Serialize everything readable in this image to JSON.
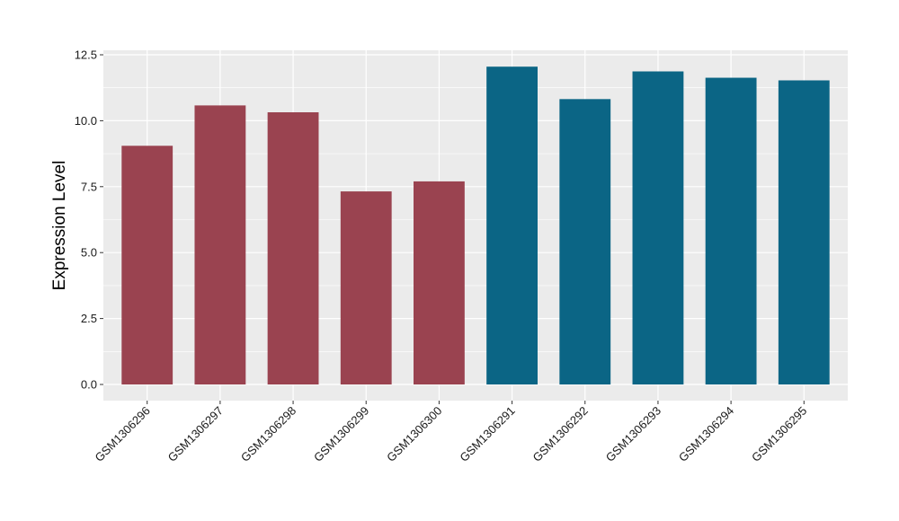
{
  "chart_data": {
    "type": "bar",
    "title": "",
    "xlabel": "",
    "ylabel": "Expression Level",
    "ylim": [
      0,
      12.5
    ],
    "yticks": [
      "0.0",
      "2.5",
      "5.0",
      "7.5",
      "10.0",
      "12.5"
    ],
    "grid": true,
    "categories": [
      "GSM1306296",
      "GSM1306297",
      "GSM1306298",
      "GSM1306299",
      "GSM1306300",
      "GSM1306291",
      "GSM1306292",
      "GSM1306293",
      "GSM1306294",
      "GSM1306295"
    ],
    "values": [
      9.05,
      10.58,
      10.32,
      7.32,
      7.7,
      12.05,
      10.82,
      11.87,
      11.63,
      11.53
    ],
    "bar_colors": [
      "#9a4350",
      "#9a4350",
      "#9a4350",
      "#9a4350",
      "#9a4350",
      "#0b6585",
      "#0b6585",
      "#0b6585",
      "#0b6585",
      "#0b6585"
    ],
    "panel_color": "#ebebeb",
    "grid_color": "#ffffff"
  }
}
